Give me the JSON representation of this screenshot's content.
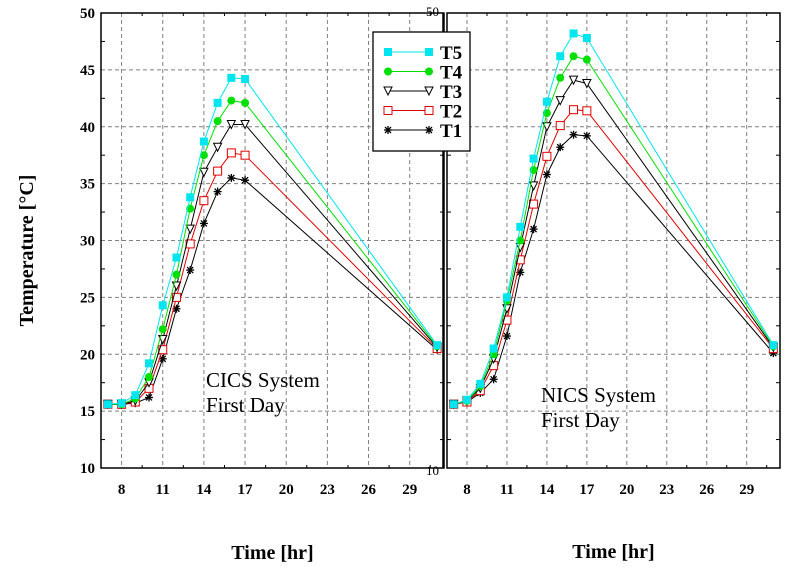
{
  "chart_data": [
    {
      "type": "line",
      "id": "left",
      "annotation": [
        "CICS System",
        "First Day"
      ],
      "xlabel": "Time [hr]",
      "ylabel": "Temperature [°C]",
      "xlim": [
        6.5,
        31.5
      ],
      "ylim": [
        10,
        50
      ],
      "xticks": [
        8,
        11,
        14,
        17,
        20,
        23,
        26,
        29
      ],
      "yticks": [
        10,
        15,
        20,
        25,
        30,
        35,
        40,
        45,
        50
      ],
      "grid": true,
      "x": [
        7,
        8,
        9,
        10,
        11,
        12,
        13,
        14,
        15,
        16,
        17,
        31
      ],
      "series": [
        {
          "name": "T5",
          "values": [
            15.6,
            15.7,
            16.4,
            19.2,
            24.3,
            28.5,
            33.8,
            38.7,
            42.1,
            44.3,
            44.2,
            20.8
          ]
        },
        {
          "name": "T4",
          "values": [
            15.6,
            15.6,
            16.1,
            18.0,
            22.2,
            27.0,
            32.8,
            37.5,
            40.5,
            42.3,
            42.1,
            20.7
          ]
        },
        {
          "name": "T3",
          "values": [
            15.6,
            15.6,
            15.9,
            17.5,
            21.3,
            26.0,
            31.0,
            36.0,
            38.2,
            40.2,
            40.2,
            20.6
          ]
        },
        {
          "name": "T2",
          "values": [
            15.6,
            15.6,
            15.8,
            17.0,
            20.4,
            25.0,
            29.7,
            33.5,
            36.1,
            37.7,
            37.5,
            20.5
          ]
        },
        {
          "name": "T1",
          "values": [
            15.6,
            15.6,
            15.7,
            16.2,
            19.6,
            24.0,
            27.4,
            31.5,
            34.3,
            35.5,
            35.3,
            20.4
          ]
        }
      ]
    },
    {
      "type": "line",
      "id": "right",
      "annotation": [
        "NICS System",
        "First Day"
      ],
      "xlabel": "Time [hr]",
      "ylabel": "",
      "xlim": [
        6.5,
        31.5
      ],
      "ylim": [
        10,
        50
      ],
      "xticks": [
        8,
        11,
        14,
        17,
        20,
        23,
        26,
        29
      ],
      "yticks": [
        10,
        50
      ],
      "grid": true,
      "x": [
        7,
        8,
        9,
        10,
        11,
        12,
        13,
        14,
        15,
        16,
        17,
        31
      ],
      "series": [
        {
          "name": "T5",
          "values": [
            15.6,
            16.0,
            17.4,
            20.5,
            25.0,
            31.2,
            37.2,
            42.2,
            46.2,
            48.2,
            47.8,
            20.8
          ]
        },
        {
          "name": "T4",
          "values": [
            15.6,
            15.9,
            17.2,
            20.0,
            24.7,
            30.0,
            36.2,
            41.2,
            44.3,
            46.2,
            45.9,
            20.7
          ]
        },
        {
          "name": "T3",
          "values": [
            15.6,
            15.9,
            17.0,
            19.6,
            24.0,
            29.4,
            34.8,
            40.0,
            42.3,
            44.1,
            43.8,
            20.6
          ]
        },
        {
          "name": "T2",
          "values": [
            15.6,
            15.8,
            16.8,
            19.0,
            23.0,
            28.3,
            33.2,
            37.4,
            40.1,
            41.5,
            41.4,
            20.5
          ]
        },
        {
          "name": "T1",
          "values": [
            15.6,
            15.8,
            16.6,
            17.8,
            21.6,
            27.2,
            31.0,
            35.8,
            38.2,
            39.3,
            39.2,
            20.1
          ]
        }
      ]
    }
  ],
  "legend": {
    "placement": "top-center",
    "items": [
      {
        "name": "T5",
        "color": "#00e5ee",
        "marker": "filled-square"
      },
      {
        "name": "T4",
        "color": "#00e000",
        "marker": "filled-circle"
      },
      {
        "name": "T3",
        "color": "#000000",
        "marker": "open-triangle-down"
      },
      {
        "name": "T2",
        "color": "#e00000",
        "marker": "open-square"
      },
      {
        "name": "T1",
        "color": "#000000",
        "marker": "asterisk"
      }
    ]
  },
  "colors": {
    "T5": "#00e5ee",
    "T4": "#00e000",
    "T3": "#000000",
    "T2": "#e00000",
    "T1": "#000000",
    "grid": "#808080"
  }
}
